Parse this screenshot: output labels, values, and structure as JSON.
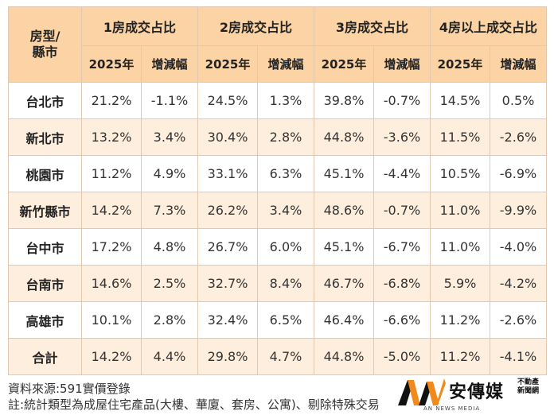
{
  "table": {
    "corner": [
      "房型/",
      "縣市"
    ],
    "groups": [
      "1房成交占比",
      "2房成交占比",
      "3房成交占比",
      "4房以上成交占比"
    ],
    "sub": [
      "2025年",
      "增減幅"
    ],
    "rows": [
      {
        "city": "台北市",
        "values": [
          "21.2%",
          "-1.1%",
          "24.5%",
          "1.3%",
          "39.8%",
          "-0.7%",
          "14.5%",
          "0.5%"
        ]
      },
      {
        "city": "新北市",
        "values": [
          "13.2%",
          "3.4%",
          "30.4%",
          "2.8%",
          "44.8%",
          "-3.6%",
          "11.5%",
          "-2.6%"
        ]
      },
      {
        "city": "桃園市",
        "values": [
          "11.2%",
          "4.9%",
          "33.1%",
          "6.3%",
          "45.1%",
          "-4.4%",
          "10.5%",
          "-6.9%"
        ]
      },
      {
        "city": "新竹縣市",
        "values": [
          "14.2%",
          "7.3%",
          "26.2%",
          "3.4%",
          "48.6%",
          "-0.7%",
          "11.0%",
          "-9.9%"
        ]
      },
      {
        "city": "台中市",
        "values": [
          "17.2%",
          "4.8%",
          "26.7%",
          "6.0%",
          "45.1%",
          "-6.7%",
          "11.0%",
          "-4.0%"
        ]
      },
      {
        "city": "台南市",
        "values": [
          "14.6%",
          "2.5%",
          "32.7%",
          "8.4%",
          "46.7%",
          "-6.8%",
          "5.9%",
          "-4.2%"
        ]
      },
      {
        "city": "高雄市",
        "values": [
          "10.1%",
          "2.8%",
          "32.4%",
          "6.5%",
          "46.4%",
          "-6.6%",
          "11.2%",
          "-2.6%"
        ]
      },
      {
        "city": "合計",
        "values": [
          "14.2%",
          "4.4%",
          "29.8%",
          "4.7%",
          "44.8%",
          "-5.0%",
          "11.2%",
          "-4.1%"
        ]
      }
    ]
  },
  "notes": {
    "source": "資料來源:591實價登錄",
    "footnote": "註:統計類型為成屋住宅產品(大樓、華廈、套房、公寓)、剔除特殊交易"
  },
  "logo": {
    "name": "安傳媒",
    "tag_line1": "不動產",
    "tag_line2": "新聞網",
    "sub": "AN NEWS MEDIA"
  },
  "colors": {
    "header_bg": "#fbd3a4",
    "stripe_bg": "#fdeedd",
    "border": "#e0c9b0",
    "logo_orange": "#f08a1c"
  }
}
